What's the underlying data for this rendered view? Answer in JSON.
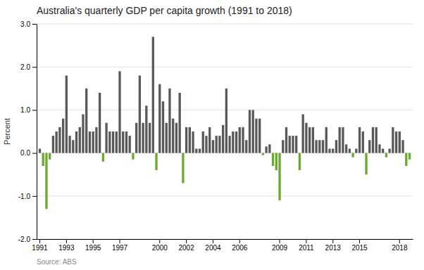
{
  "chart_data": {
    "type": "bar",
    "title": "Australia's quarterly GDP per capita growth (1991 to 2018)",
    "ylabel": "Percent",
    "source": "Source: ABS",
    "categories": [
      "1991",
      null,
      null,
      null,
      null,
      null,
      null,
      null,
      "1993",
      null,
      null,
      null,
      null,
      null,
      null,
      null,
      "1995",
      null,
      null,
      null,
      null,
      null,
      null,
      null,
      "1997",
      null,
      null,
      null,
      null,
      null,
      null,
      null,
      null,
      null,
      null,
      null,
      "2000",
      null,
      null,
      null,
      null,
      null,
      null,
      null,
      "2002",
      null,
      null,
      null,
      null,
      null,
      null,
      null,
      "2004",
      null,
      null,
      null,
      null,
      null,
      null,
      null,
      "2006",
      null,
      null,
      null,
      null,
      null,
      null,
      null,
      null,
      null,
      null,
      null,
      "2009",
      null,
      null,
      null,
      null,
      null,
      null,
      null,
      "2011",
      null,
      null,
      null,
      null,
      null,
      null,
      null,
      "2013",
      null,
      null,
      null,
      null,
      null,
      null,
      null,
      "2015",
      null,
      null,
      null,
      null,
      null,
      null,
      null,
      null,
      null,
      null,
      null,
      "2018",
      null,
      null,
      null
    ],
    "values": [
      0.1,
      -0.3,
      -1.3,
      -0.15,
      0.4,
      0.5,
      0.6,
      0.8,
      1.8,
      0.4,
      0.3,
      0.5,
      0.6,
      0.9,
      1.5,
      0.5,
      0.5,
      0.6,
      1.4,
      -0.2,
      0.7,
      0.5,
      0.5,
      0.5,
      1.9,
      0.5,
      0.5,
      0.4,
      -0.15,
      0.7,
      1.8,
      0.7,
      1.1,
      0.7,
      2.7,
      -0.4,
      1.6,
      1.2,
      0.7,
      1.5,
      0.8,
      0.7,
      1.4,
      -0.7,
      0.6,
      0.6,
      0.5,
      0.1,
      0.1,
      0.5,
      0.4,
      0.6,
      0.3,
      0.4,
      0.4,
      0.65,
      1.5,
      0.4,
      0.5,
      0.5,
      0.6,
      0.6,
      0.3,
      1.0,
      1.0,
      0.8,
      0.8,
      -0.05,
      0.15,
      0.2,
      -0.3,
      -0.4,
      -1.1,
      0.3,
      0.6,
      0.4,
      0.4,
      0.4,
      -0.4,
      0.9,
      0.7,
      0.6,
      0.6,
      0.3,
      0.3,
      0.3,
      0.6,
      0.1,
      0.1,
      0.3,
      0.6,
      0.6,
      0.2,
      0.1,
      -0.1,
      0.1,
      0.6,
      0.5,
      -0.5,
      0.3,
      0.6,
      0.6,
      0.2,
      0.1,
      -0.1,
      0.1,
      0.6,
      0.5,
      0.5,
      0.3,
      -0.3,
      -0.15
    ],
    "colors": [
      "#595959",
      "#6aaa2e",
      "#6aaa2e",
      "#6aaa2e",
      "#595959",
      "#595959",
      "#595959",
      "#595959",
      "#595959",
      "#595959",
      "#595959",
      "#595959",
      "#595959",
      "#595959",
      "#595959",
      "#595959",
      "#595959",
      "#595959",
      "#595959",
      "#6aaa2e",
      "#595959",
      "#595959",
      "#595959",
      "#595959",
      "#595959",
      "#595959",
      "#595959",
      "#595959",
      "#6aaa2e",
      "#595959",
      "#595959",
      "#595959",
      "#595959",
      "#595959",
      "#595959",
      "#6aaa2e",
      "#595959",
      "#595959",
      "#595959",
      "#595959",
      "#595959",
      "#595959",
      "#595959",
      "#6aaa2e",
      "#595959",
      "#595959",
      "#595959",
      "#595959",
      "#595959",
      "#595959",
      "#595959",
      "#595959",
      "#595959",
      "#595959",
      "#595959",
      "#595959",
      "#595959",
      "#595959",
      "#595959",
      "#595959",
      "#595959",
      "#595959",
      "#595959",
      "#595959",
      "#595959",
      "#595959",
      "#595959",
      "#6aaa2e",
      "#595959",
      "#595959",
      "#6aaa2e",
      "#6aaa2e",
      "#6aaa2e",
      "#595959",
      "#595959",
      "#595959",
      "#595959",
      "#595959",
      "#6aaa2e",
      "#595959",
      "#595959",
      "#595959",
      "#595959",
      "#595959",
      "#595959",
      "#595959",
      "#595959",
      "#595959",
      "#595959",
      "#595959",
      "#595959",
      "#595959",
      "#595959",
      "#595959",
      "#6aaa2e",
      "#595959",
      "#595959",
      "#595959",
      "#6aaa2e",
      "#595959",
      "#595959",
      "#595959",
      "#595959",
      "#595959",
      "#6aaa2e",
      "#595959",
      "#595959",
      "#595959",
      "#595959",
      "#595959",
      "#6aaa2e",
      "#6aaa2e"
    ],
    "ylim": [
      -2.0,
      3.0
    ],
    "yticks": [
      {
        "value": -2.0,
        "label": "-2.0"
      },
      {
        "value": -1.0,
        "label": "-1.0"
      },
      {
        "value": 0.0,
        "label": "0.0"
      },
      {
        "value": 1.0,
        "label": "1.0"
      },
      {
        "value": 2.0,
        "label": "2.0"
      },
      {
        "value": 3.0,
        "label": "3.0"
      }
    ],
    "grid": true
  }
}
